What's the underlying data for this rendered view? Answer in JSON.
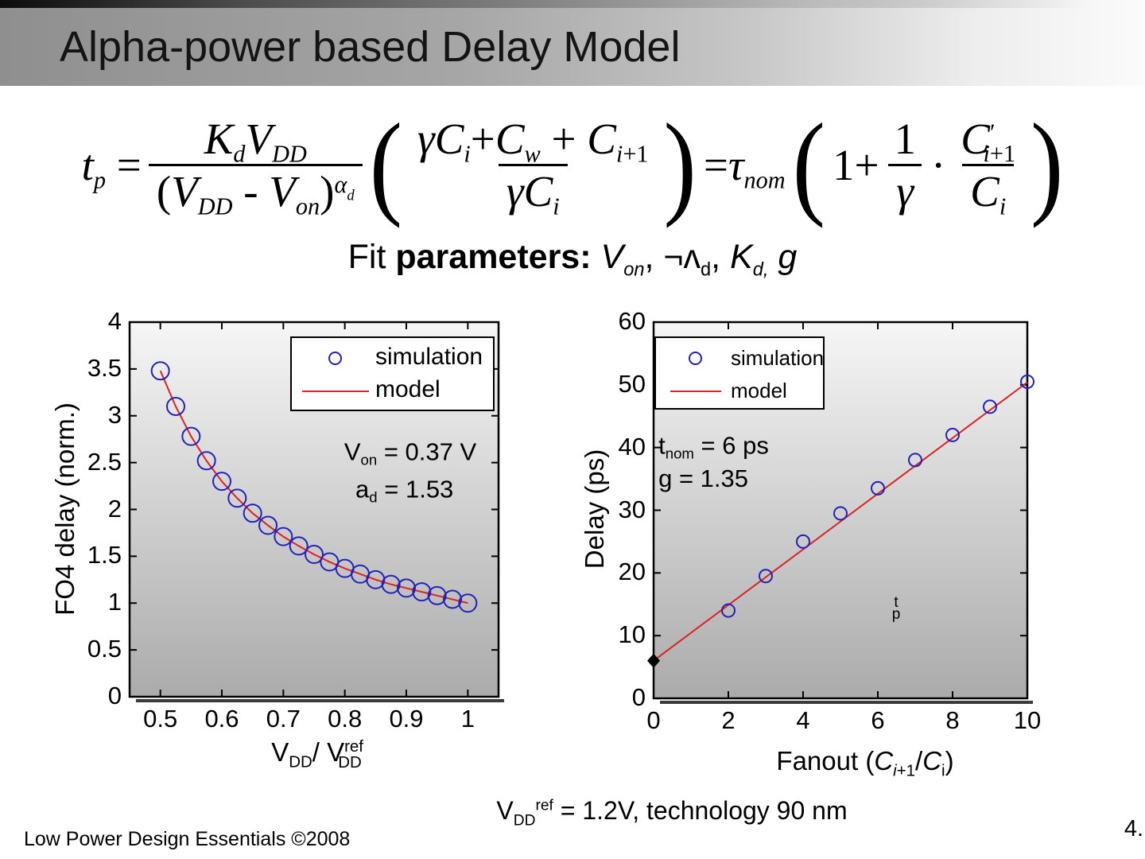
{
  "slide": {
    "title": "Alpha-power based Delay Model",
    "fit_html": "Fit <b>parameters:</b> <i>V<sub>on</sub></i>,  ¬ʌ<sub>d</sub>, <i>K</i><sub><i>d,</i></sub> <i>g</i>",
    "bottom_note_html": "V<sub>DD</sub><sup>ref</sup> = 1.2V, technology 90 nm",
    "footer_left": "Low Power Design Essentials ©2008",
    "footer_right": "4."
  },
  "formula": {
    "lhs_html": "<i>t</i><sub><i>p</i></sub> =",
    "f1_num_html": "<i>K</i><sub><i>d</i></sub><i>V</i><sub><i>DD</i></sub>",
    "f1_den_html": "(<i>V</i><sub><i>DD</i></sub> - <i>V</i><sub><i>on</i></sub>)<sup><i>α</i><sub><i>d</i></sub></sup>",
    "lparen": "(",
    "f2_num_html": "<i>γC</i><sub><i>i</i></sub>+<i>C</i><sub><i>w</i></sub> + <i>C</i><sub><i>i</i>+1</sub>",
    "f2_den_html": "<i>γC</i><sub><i>i</i></sub>",
    "rparen": ")",
    "eq2_html": "=<i>τ</i><sub><i>nom</i></sub>",
    "one_plus": "1+",
    "f3_num_html": "1",
    "f3_den_html": "<i>γ</i>",
    "dot": "·",
    "f4_num_html": "<i>C</i><sup>′</sup><sub><i>i</i>+1</sub>",
    "f4_den_html": "<i>C</i><sub><i>i</i></sub>"
  },
  "chart_data": [
    {
      "id": "left",
      "type": "scatter",
      "title": "",
      "xlabel_html": "V<sub>DD</sub>/ V<sup>ref</sup><sub>DD</sub>",
      "ylabel": "FO4 delay (norm.)",
      "xlim": [
        0.45,
        1.05
      ],
      "ylim": [
        0,
        4
      ],
      "x_ticks": [
        "0.5",
        "0.6",
        "0.7",
        "0.8",
        "0.9",
        "1"
      ],
      "y_ticks": [
        "0",
        "0.5",
        "1",
        "1.5",
        "2",
        "2.5",
        "3",
        "3.5",
        "4"
      ],
      "grid": false,
      "legend_position": "top-right",
      "series": [
        {
          "name": "simulation",
          "marker": "circle",
          "color": "#2222bb",
          "x": [
            0.5,
            0.525,
            0.55,
            0.575,
            0.6,
            0.625,
            0.65,
            0.675,
            0.7,
            0.725,
            0.75,
            0.775,
            0.8,
            0.825,
            0.85,
            0.875,
            0.9,
            0.925,
            0.95,
            0.975,
            1.0
          ],
          "y": [
            3.48,
            3.1,
            2.78,
            2.52,
            2.3,
            2.12,
            1.96,
            1.83,
            1.71,
            1.61,
            1.52,
            1.44,
            1.37,
            1.31,
            1.25,
            1.2,
            1.16,
            1.12,
            1.08,
            1.04,
            1.0
          ]
        },
        {
          "name": "model",
          "type": "line",
          "color": "#dd2222",
          "x": [
            0.5,
            0.525,
            0.55,
            0.575,
            0.6,
            0.625,
            0.65,
            0.675,
            0.7,
            0.725,
            0.75,
            0.775,
            0.8,
            0.825,
            0.85,
            0.875,
            0.9,
            0.925,
            0.95,
            0.975,
            1.0
          ],
          "y": [
            3.48,
            3.1,
            2.78,
            2.52,
            2.3,
            2.12,
            1.96,
            1.83,
            1.71,
            1.61,
            1.52,
            1.44,
            1.37,
            1.31,
            1.25,
            1.2,
            1.16,
            1.12,
            1.08,
            1.04,
            1.0
          ]
        }
      ],
      "legend": [
        {
          "label": "simulation",
          "marker": "circle"
        },
        {
          "label": "model",
          "marker": "line"
        }
      ],
      "annotations": [
        {
          "html": "V<sub>on</sub> = 0.37 V",
          "x": 0.9065,
          "y": 2.6,
          "anchor": "middle"
        },
        {
          "html": "a<sub>d</sub> = 1.53",
          "x": 0.897,
          "y": 2.2,
          "anchor": "middle"
        }
      ]
    },
    {
      "id": "right",
      "type": "scatter",
      "title": "",
      "xlabel_html": "Fanout (<i>C</i><sub><i>i</i>+1</sub>/<i>C</i><sub>i</sub>)",
      "ylabel": "Delay (ps)",
      "xlim": [
        0,
        10
      ],
      "ylim": [
        0,
        60
      ],
      "x_ticks": [
        "0",
        "2",
        "4",
        "6",
        "8",
        "10"
      ],
      "y_ticks": [
        "0",
        "10",
        "20",
        "30",
        "40",
        "50",
        "60"
      ],
      "grid": false,
      "legend_position": "top-left",
      "series": [
        {
          "name": "simulation",
          "marker": "circle",
          "color": "#2222bb",
          "x": [
            2,
            3,
            4,
            5,
            6,
            7,
            8,
            9,
            10
          ],
          "y": [
            14,
            19.5,
            25,
            29.5,
            33.5,
            38,
            42,
            46.5,
            50.5
          ]
        },
        {
          "name": "model",
          "type": "line",
          "color": "#dd2222",
          "x": [
            0,
            10
          ],
          "y": [
            6,
            50.4
          ]
        },
        {
          "name": "tnom-point",
          "marker": "diamond",
          "color": "#000000",
          "x": [
            0
          ],
          "y": [
            6
          ]
        }
      ],
      "legend": [
        {
          "label": "simulation",
          "marker": "circle"
        },
        {
          "label": "model",
          "marker": "line"
        }
      ],
      "annotations": [
        {
          "html": "t<sub>nom</sub> = 6 ps",
          "x": 0.13,
          "y": 40.1,
          "anchor": "start"
        },
        {
          "html": "g = 1.35",
          "x": 0.13,
          "y": 35.0,
          "anchor": "start"
        },
        {
          "html": "t<br>p",
          "x": 6.49,
          "y": 14.3,
          "anchor": "middle",
          "small": true
        }
      ]
    }
  ]
}
